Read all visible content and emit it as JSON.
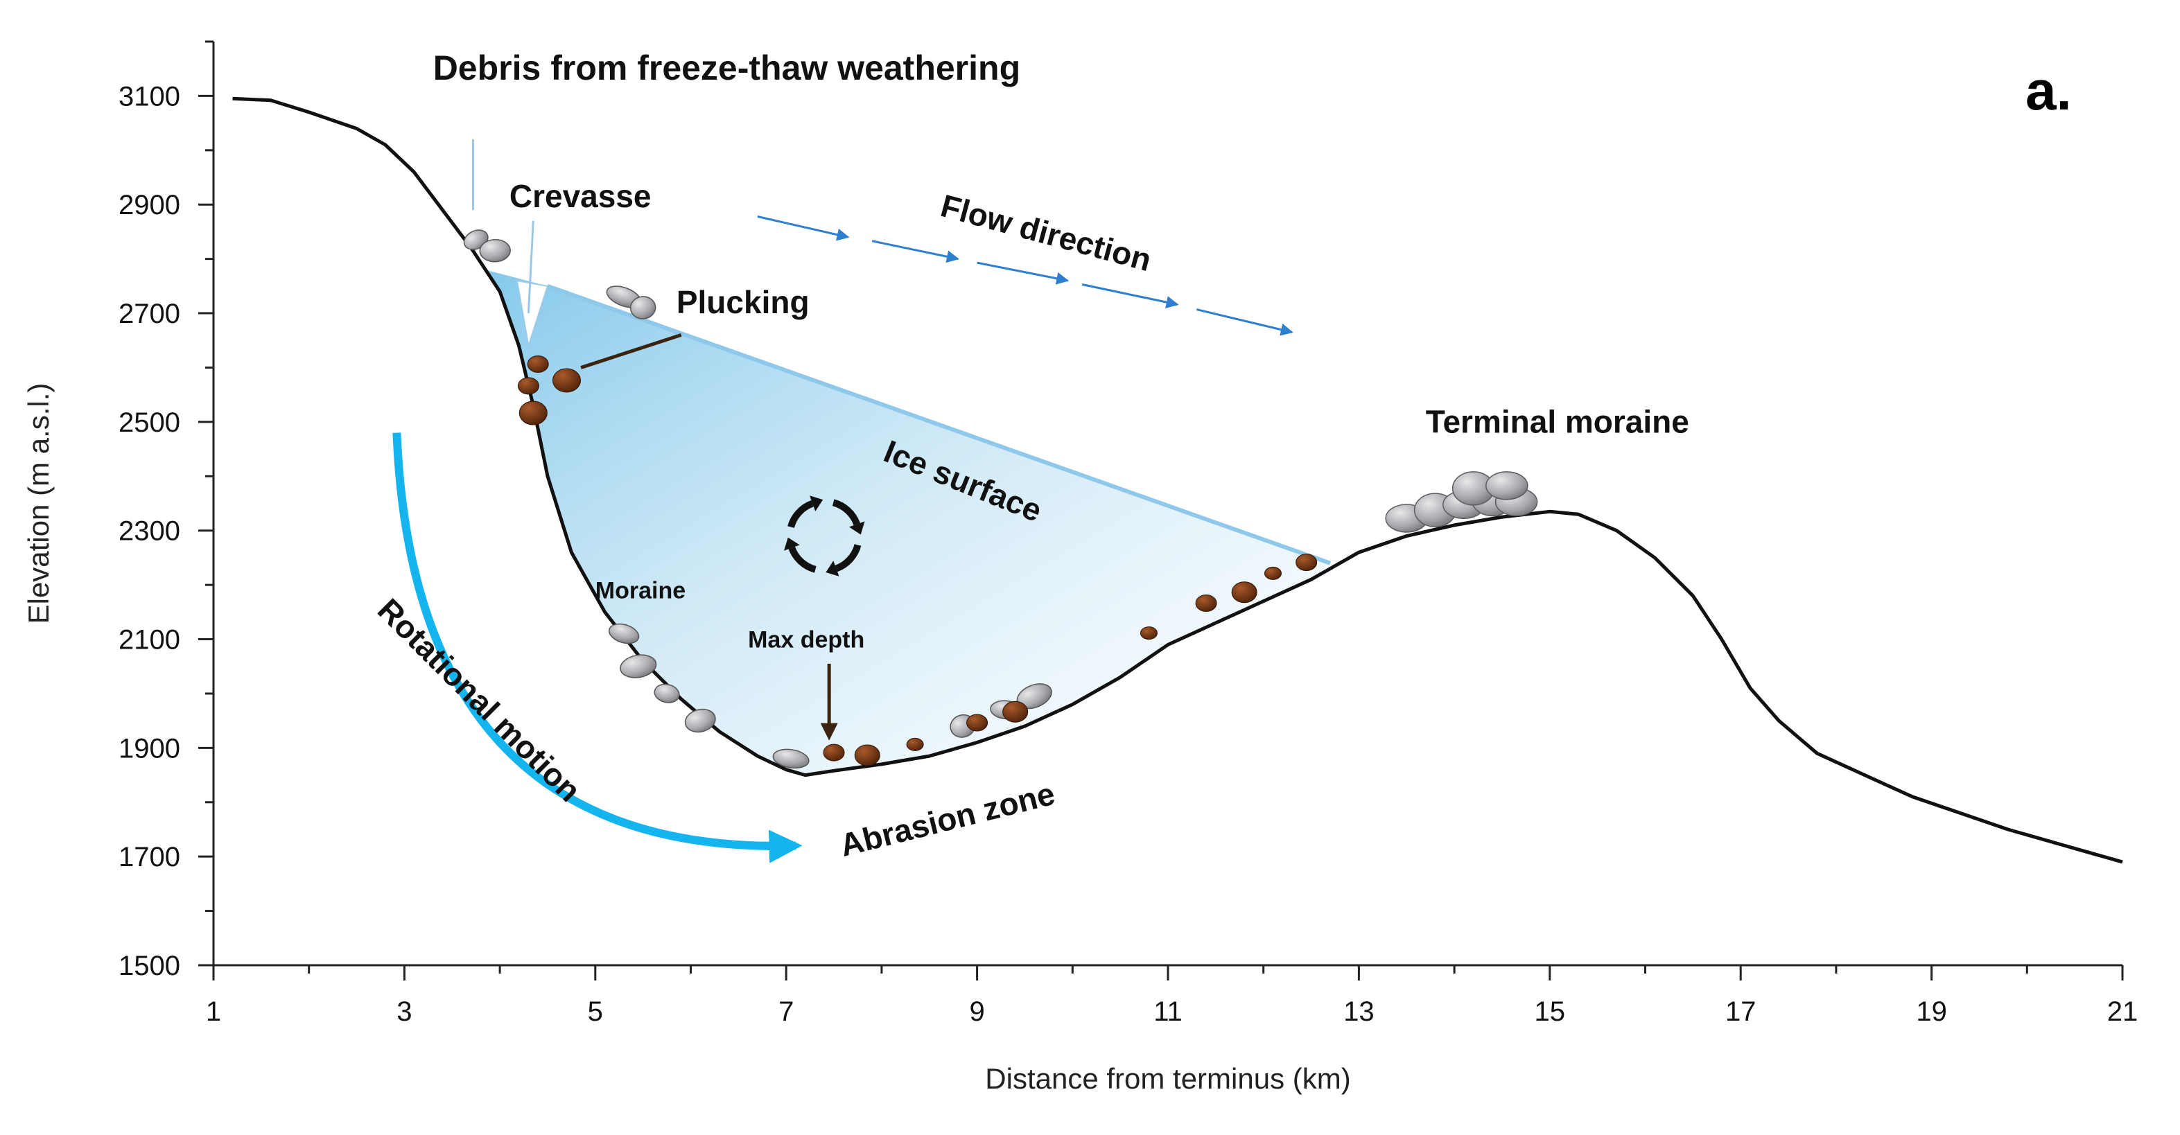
{
  "panel_label": "a.",
  "chart_data": {
    "type": "diagram",
    "xlabel": "Distance from terminus (km)",
    "ylabel": "Elevation (m a.s.l.)",
    "xlim": [
      1,
      21
    ],
    "ylim": [
      1500,
      3200
    ],
    "x_ticks": [
      1,
      3,
      5,
      7,
      9,
      11,
      13,
      15,
      17,
      19,
      21
    ],
    "y_ticks": [
      1500,
      1700,
      1900,
      2100,
      2300,
      2500,
      2700,
      2900,
      3100
    ],
    "bed_profile": [
      {
        "x": 1.2,
        "y": 3095
      },
      {
        "x": 1.6,
        "y": 3092
      },
      {
        "x": 2.0,
        "y": 3070
      },
      {
        "x": 2.5,
        "y": 3040
      },
      {
        "x": 2.8,
        "y": 3010
      },
      {
        "x": 3.1,
        "y": 2960
      },
      {
        "x": 3.4,
        "y": 2890
      },
      {
        "x": 3.7,
        "y": 2820
      },
      {
        "x": 4.0,
        "y": 2740
      },
      {
        "x": 4.2,
        "y": 2640
      },
      {
        "x": 4.35,
        "y": 2530
      },
      {
        "x": 4.5,
        "y": 2400
      },
      {
        "x": 4.75,
        "y": 2260
      },
      {
        "x": 5.1,
        "y": 2150
      },
      {
        "x": 5.5,
        "y": 2060
      },
      {
        "x": 5.9,
        "y": 1990
      },
      {
        "x": 6.3,
        "y": 1930
      },
      {
        "x": 6.7,
        "y": 1885
      },
      {
        "x": 7.0,
        "y": 1860
      },
      {
        "x": 7.2,
        "y": 1850
      },
      {
        "x": 7.5,
        "y": 1858
      },
      {
        "x": 8.0,
        "y": 1870
      },
      {
        "x": 8.5,
        "y": 1885
      },
      {
        "x": 9.0,
        "y": 1910
      },
      {
        "x": 9.5,
        "y": 1940
      },
      {
        "x": 10.0,
        "y": 1980
      },
      {
        "x": 10.5,
        "y": 2030
      },
      {
        "x": 11.0,
        "y": 2090
      },
      {
        "x": 11.5,
        "y": 2130
      },
      {
        "x": 12.0,
        "y": 2170
      },
      {
        "x": 12.5,
        "y": 2210
      },
      {
        "x": 13.0,
        "y": 2260
      },
      {
        "x": 13.5,
        "y": 2290
      },
      {
        "x": 14.0,
        "y": 2310
      },
      {
        "x": 14.5,
        "y": 2325
      },
      {
        "x": 15.0,
        "y": 2335
      },
      {
        "x": 15.3,
        "y": 2330
      },
      {
        "x": 15.7,
        "y": 2300
      },
      {
        "x": 16.1,
        "y": 2250
      },
      {
        "x": 16.5,
        "y": 2180
      },
      {
        "x": 16.8,
        "y": 2100
      },
      {
        "x": 17.1,
        "y": 2010
      },
      {
        "x": 17.4,
        "y": 1950
      },
      {
        "x": 17.8,
        "y": 1890
      },
      {
        "x": 18.3,
        "y": 1850
      },
      {
        "x": 18.8,
        "y": 1810
      },
      {
        "x": 19.3,
        "y": 1780
      },
      {
        "x": 19.8,
        "y": 1750
      },
      {
        "x": 20.3,
        "y": 1725
      },
      {
        "x": 20.7,
        "y": 1705
      },
      {
        "x": 21.0,
        "y": 1690
      }
    ],
    "ice_surface": [
      {
        "x": 4.5,
        "y": 2750
      },
      {
        "x": 12.7,
        "y": 2240
      }
    ],
    "crevasse": {
      "x": 4.3,
      "y_top": 2760,
      "y_bottom": 2640
    },
    "annotations": [
      {
        "key": "debris",
        "text": "Debris from freeze-thaw weathering",
        "x": 3.3,
        "y": 3130,
        "size": 50,
        "rotate": 0
      },
      {
        "key": "crevasse",
        "text": "Crevasse",
        "x": 4.1,
        "y": 2895,
        "size": 46,
        "rotate": 0
      },
      {
        "key": "plucking",
        "text": "Plucking",
        "x": 5.85,
        "y": 2700,
        "size": 46,
        "rotate": 0
      },
      {
        "key": "flow",
        "text": "Flow direction",
        "x": 8.6,
        "y": 2880,
        "size": 46,
        "rotate": 15
      },
      {
        "key": "ice",
        "text": "Ice surface",
        "x": 8.0,
        "y": 2430,
        "size": 46,
        "rotate": 22
      },
      {
        "key": "terminal",
        "text": "Terminal moraine",
        "x": 13.7,
        "y": 2480,
        "size": 46,
        "rotate": 0
      },
      {
        "key": "moraine",
        "text": "Moraine",
        "x": 5.0,
        "y": 2175,
        "size": 34,
        "rotate": 0
      },
      {
        "key": "maxdepth",
        "text": "Max depth",
        "x": 6.6,
        "y": 2085,
        "size": 34,
        "rotate": 0
      },
      {
        "key": "rotational",
        "text": "Rotational motion",
        "x": 2.7,
        "y": 2150,
        "size": 46,
        "rotate": 45
      },
      {
        "key": "abrasion",
        "text": "Abrasion zone",
        "x": 7.6,
        "y": 1700,
        "size": 46,
        "rotate": -14
      }
    ],
    "flow_arrows": [
      {
        "x1": 6.7,
        "y1": 2878,
        "x2": 7.65,
        "y2": 2840
      },
      {
        "x1": 7.9,
        "y1": 2833,
        "x2": 8.8,
        "y2": 2800
      },
      {
        "x1": 9.0,
        "y1": 2793,
        "x2": 9.95,
        "y2": 2760
      },
      {
        "x1": 10.1,
        "y1": 2753,
        "x2": 11.1,
        "y2": 2716
      },
      {
        "x1": 11.3,
        "y1": 2707,
        "x2": 12.3,
        "y2": 2665
      }
    ],
    "boulders_grey": [
      {
        "x": 3.75,
        "y": 2825
      },
      {
        "x": 3.95,
        "y": 2805
      },
      {
        "x": 5.3,
        "y": 2720
      },
      {
        "x": 5.5,
        "y": 2700
      },
      {
        "x": 5.3,
        "y": 2100
      },
      {
        "x": 5.45,
        "y": 2040
      },
      {
        "x": 5.75,
        "y": 1990
      },
      {
        "x": 6.1,
        "y": 1940
      },
      {
        "x": 7.05,
        "y": 1870
      },
      {
        "x": 8.85,
        "y": 1930
      },
      {
        "x": 9.3,
        "y": 1960
      },
      {
        "x": 9.6,
        "y": 1985
      }
    ],
    "rocks_brown": [
      {
        "x": 4.3,
        "y": 2560
      },
      {
        "x": 4.35,
        "y": 2510
      },
      {
        "x": 4.4,
        "y": 2600
      },
      {
        "x": 4.7,
        "y": 2570
      },
      {
        "x": 7.5,
        "y": 1885
      },
      {
        "x": 7.85,
        "y": 1880
      },
      {
        "x": 8.35,
        "y": 1900
      },
      {
        "x": 9.0,
        "y": 1940
      },
      {
        "x": 9.4,
        "y": 1960
      },
      {
        "x": 10.8,
        "y": 2105
      },
      {
        "x": 11.4,
        "y": 2160
      },
      {
        "x": 11.8,
        "y": 2180
      },
      {
        "x": 12.1,
        "y": 2215
      },
      {
        "x": 12.45,
        "y": 2235
      }
    ],
    "terminal_moraine_boulders": [
      {
        "x": 13.5,
        "y": 2315
      },
      {
        "x": 13.8,
        "y": 2330
      },
      {
        "x": 14.1,
        "y": 2340
      },
      {
        "x": 14.4,
        "y": 2350
      },
      {
        "x": 14.65,
        "y": 2345
      },
      {
        "x": 14.2,
        "y": 2370
      },
      {
        "x": 14.55,
        "y": 2375
      }
    ]
  }
}
